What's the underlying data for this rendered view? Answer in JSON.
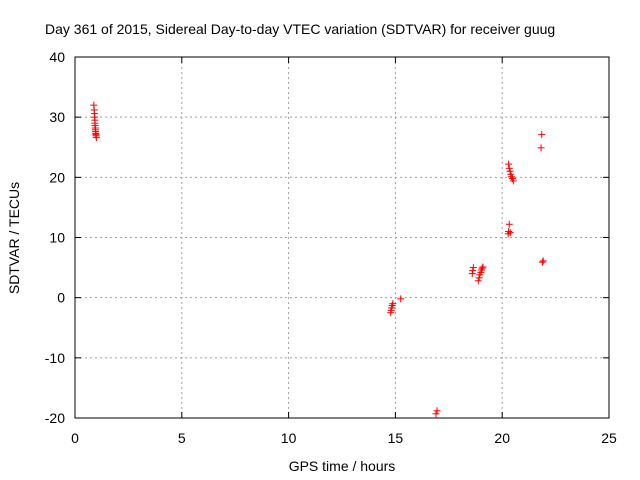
{
  "chart_data": {
    "type": "scatter",
    "title": "Day 361 of 2015, Sidereal Day-to-day VTEC variation (SDTVAR) for receiver guug",
    "xlabel": "GPS time / hours",
    "ylabel": "SDTVAR / TECUs",
    "xlim": [
      0,
      25
    ],
    "ylim": [
      -20,
      40
    ],
    "x_ticks": [
      "0",
      "5",
      "10",
      "15",
      "20",
      "25"
    ],
    "y_ticks": [
      "-20",
      "-10",
      "0",
      "10",
      "20",
      "30",
      "40"
    ],
    "grid": true,
    "legend": "none",
    "marker": "plus",
    "color": "#ff0000",
    "series": [
      {
        "x": [
          0.88,
          0.9,
          0.91,
          0.92,
          0.93,
          0.93,
          0.94,
          0.95,
          0.96,
          0.96,
          0.97,
          0.98,
          0.99,
          1.0,
          14.78,
          14.8,
          14.82,
          14.85,
          14.88,
          15.25,
          16.9,
          16.95,
          18.6,
          18.62,
          18.65,
          18.88,
          18.92,
          18.95,
          19.0,
          19.03,
          19.06,
          19.1,
          20.28,
          20.3,
          20.33,
          20.38,
          20.3,
          20.33,
          20.37,
          20.4,
          20.43,
          20.48,
          20.52,
          21.82,
          21.85,
          21.88,
          21.92
        ],
        "y": [
          32.0,
          31.2,
          30.6,
          30.0,
          29.5,
          29.0,
          28.6,
          28.2,
          27.9,
          27.6,
          27.3,
          27.1,
          26.9,
          26.6,
          -2.5,
          -2.1,
          -1.7,
          -1.3,
          -1.0,
          -0.2,
          -19.3,
          -18.8,
          4.0,
          4.5,
          5.0,
          2.8,
          3.3,
          3.8,
          4.2,
          4.6,
          4.9,
          5.1,
          10.6,
          11.0,
          12.2,
          10.8,
          22.2,
          21.5,
          21.0,
          20.5,
          20.1,
          19.8,
          19.4,
          24.9,
          27.1,
          5.9,
          6.1
        ]
      }
    ]
  }
}
